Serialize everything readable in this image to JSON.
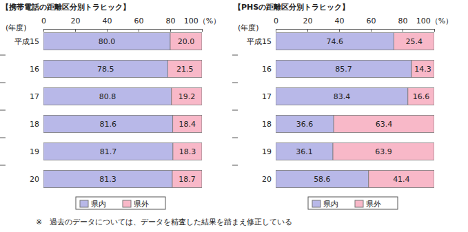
{
  "chart_data": [
    {
      "type": "bar",
      "title": "【携帯電話の距離区分別トラヒック】",
      "ylabel": "(年度)",
      "orientation": "horizontal",
      "stacked": true,
      "data_labels": true,
      "legend": "bottom",
      "categories": [
        "平成15",
        "16",
        "17",
        "18",
        "19",
        "20"
      ],
      "xlim": [
        0,
        100
      ],
      "xticks": [
        0,
        20,
        40,
        60,
        80,
        {
          "value": 100,
          "label": "100（%）"
        }
      ],
      "series": [
        {
          "name": "県内",
          "color": "#b8b8e8",
          "values": [
            80.0,
            78.5,
            80.8,
            81.6,
            81.7,
            81.3
          ],
          "value_labels": [
            "80.0",
            "78.5",
            "80.8",
            "81.6",
            "81.7",
            "81.3"
          ]
        },
        {
          "name": "県外",
          "color": "#f8b8c8",
          "values": [
            20.0,
            21.5,
            19.2,
            18.4,
            18.3,
            18.7
          ],
          "value_labels": [
            "20.0",
            "21.5",
            "19.2",
            "18.4",
            "18.3",
            "18.7"
          ]
        }
      ]
    },
    {
      "type": "bar",
      "title": "【PHSの距離区分別トラヒック】",
      "ylabel": "(年度)",
      "orientation": "horizontal",
      "stacked": true,
      "data_labels": true,
      "legend": "bottom",
      "categories": [
        "平成15",
        "16",
        "17",
        "18",
        "19",
        "20"
      ],
      "xlim": [
        0,
        100
      ],
      "xticks": [
        0,
        20,
        40,
        60,
        80,
        {
          "value": 100,
          "label": "100（%）"
        }
      ],
      "series": [
        {
          "name": "県内",
          "color": "#b8b8e8",
          "values": [
            74.6,
            85.7,
            83.4,
            36.6,
            36.1,
            58.6
          ],
          "value_labels": [
            "74.6",
            "85.7",
            "83.4",
            "36.6",
            "36.1",
            "58.6"
          ]
        },
        {
          "name": "県外",
          "color": "#f8b8c8",
          "values": [
            25.4,
            14.3,
            16.6,
            63.4,
            63.9,
            41.4
          ],
          "value_labels": [
            "25.4",
            "14.3",
            "16.6",
            "63.4",
            "63.9",
            "41.4"
          ]
        }
      ]
    }
  ],
  "note": "※　過去のデータについては、データを精査した結果を踏まえ修正している"
}
